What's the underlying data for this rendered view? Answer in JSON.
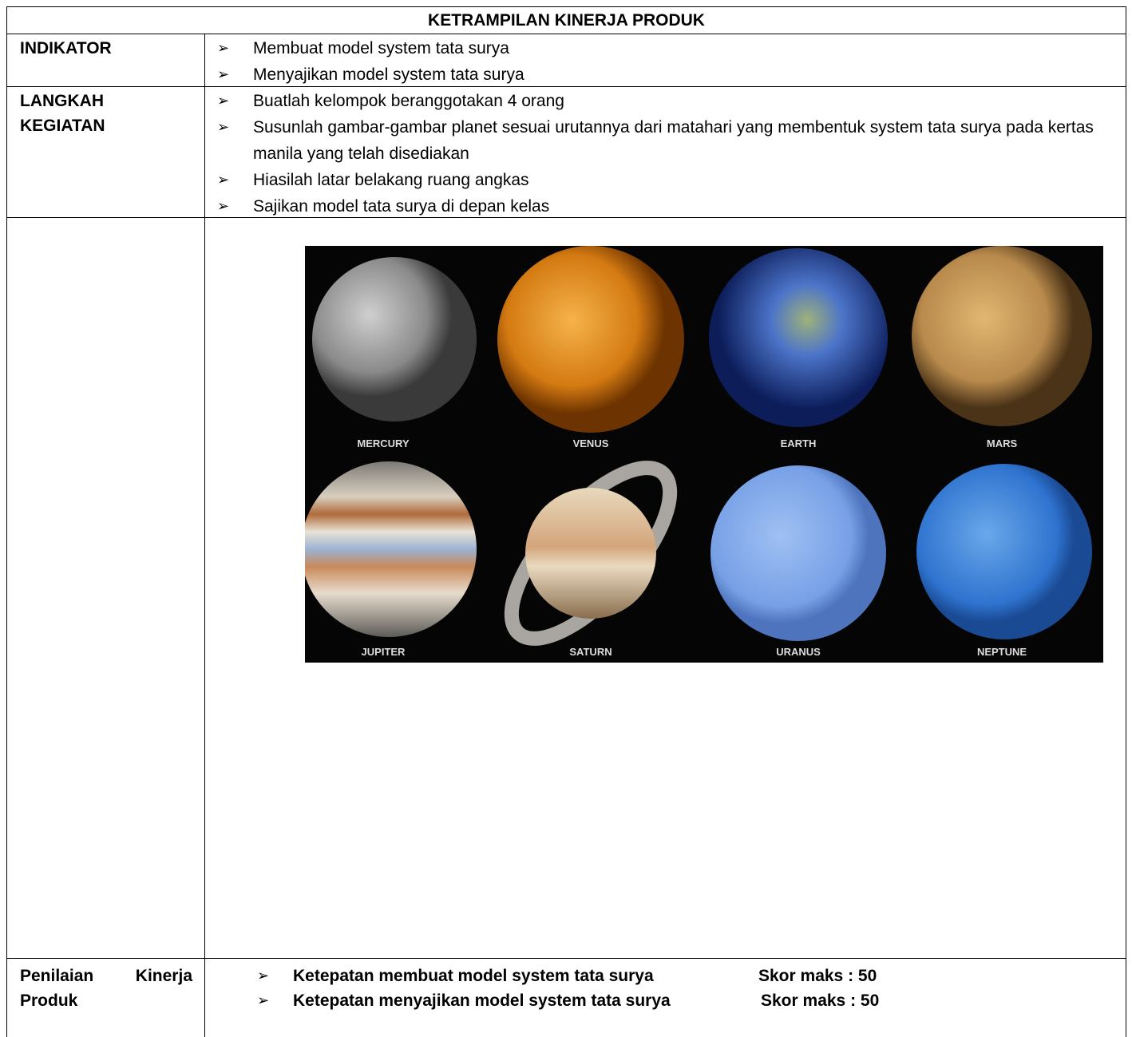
{
  "title": "KETRAMPILAN KINERJA PRODUK",
  "indikator": {
    "label_lines": [
      "INDIKATOR"
    ],
    "items": [
      "Membuat model system tata surya",
      "Menyajikan model system tata surya"
    ]
  },
  "langkah": {
    "label_lines": [
      "LANGKAH",
      "KEGIATAN"
    ],
    "items": [
      "Buatlah kelompok beranggotakan 4 orang",
      "Susunlah gambar-gambar planet sesuai urutannya dari matahari yang membentuk system tata surya pada kertas manila yang telah disediakan",
      "Hiasilah latar belakang ruang angkas",
      "Sajikan model tata surya di depan kelas"
    ]
  },
  "image": {
    "planets": [
      "MERCURY",
      "VENUS",
      "EARTH",
      "MARS",
      "JUPITER",
      "SATURN",
      "URANUS",
      "NEPTUNE"
    ]
  },
  "penilaian": {
    "label_lines": [
      "Penilaian Kinerja",
      "Produk"
    ],
    "items": [
      {
        "text": "Ketepatan membuat model system tata surya",
        "score": "Skor maks : 50"
      },
      {
        "text": "Ketepatan menyajikan model system tata surya",
        "score": "Skor maks : 50"
      }
    ]
  }
}
